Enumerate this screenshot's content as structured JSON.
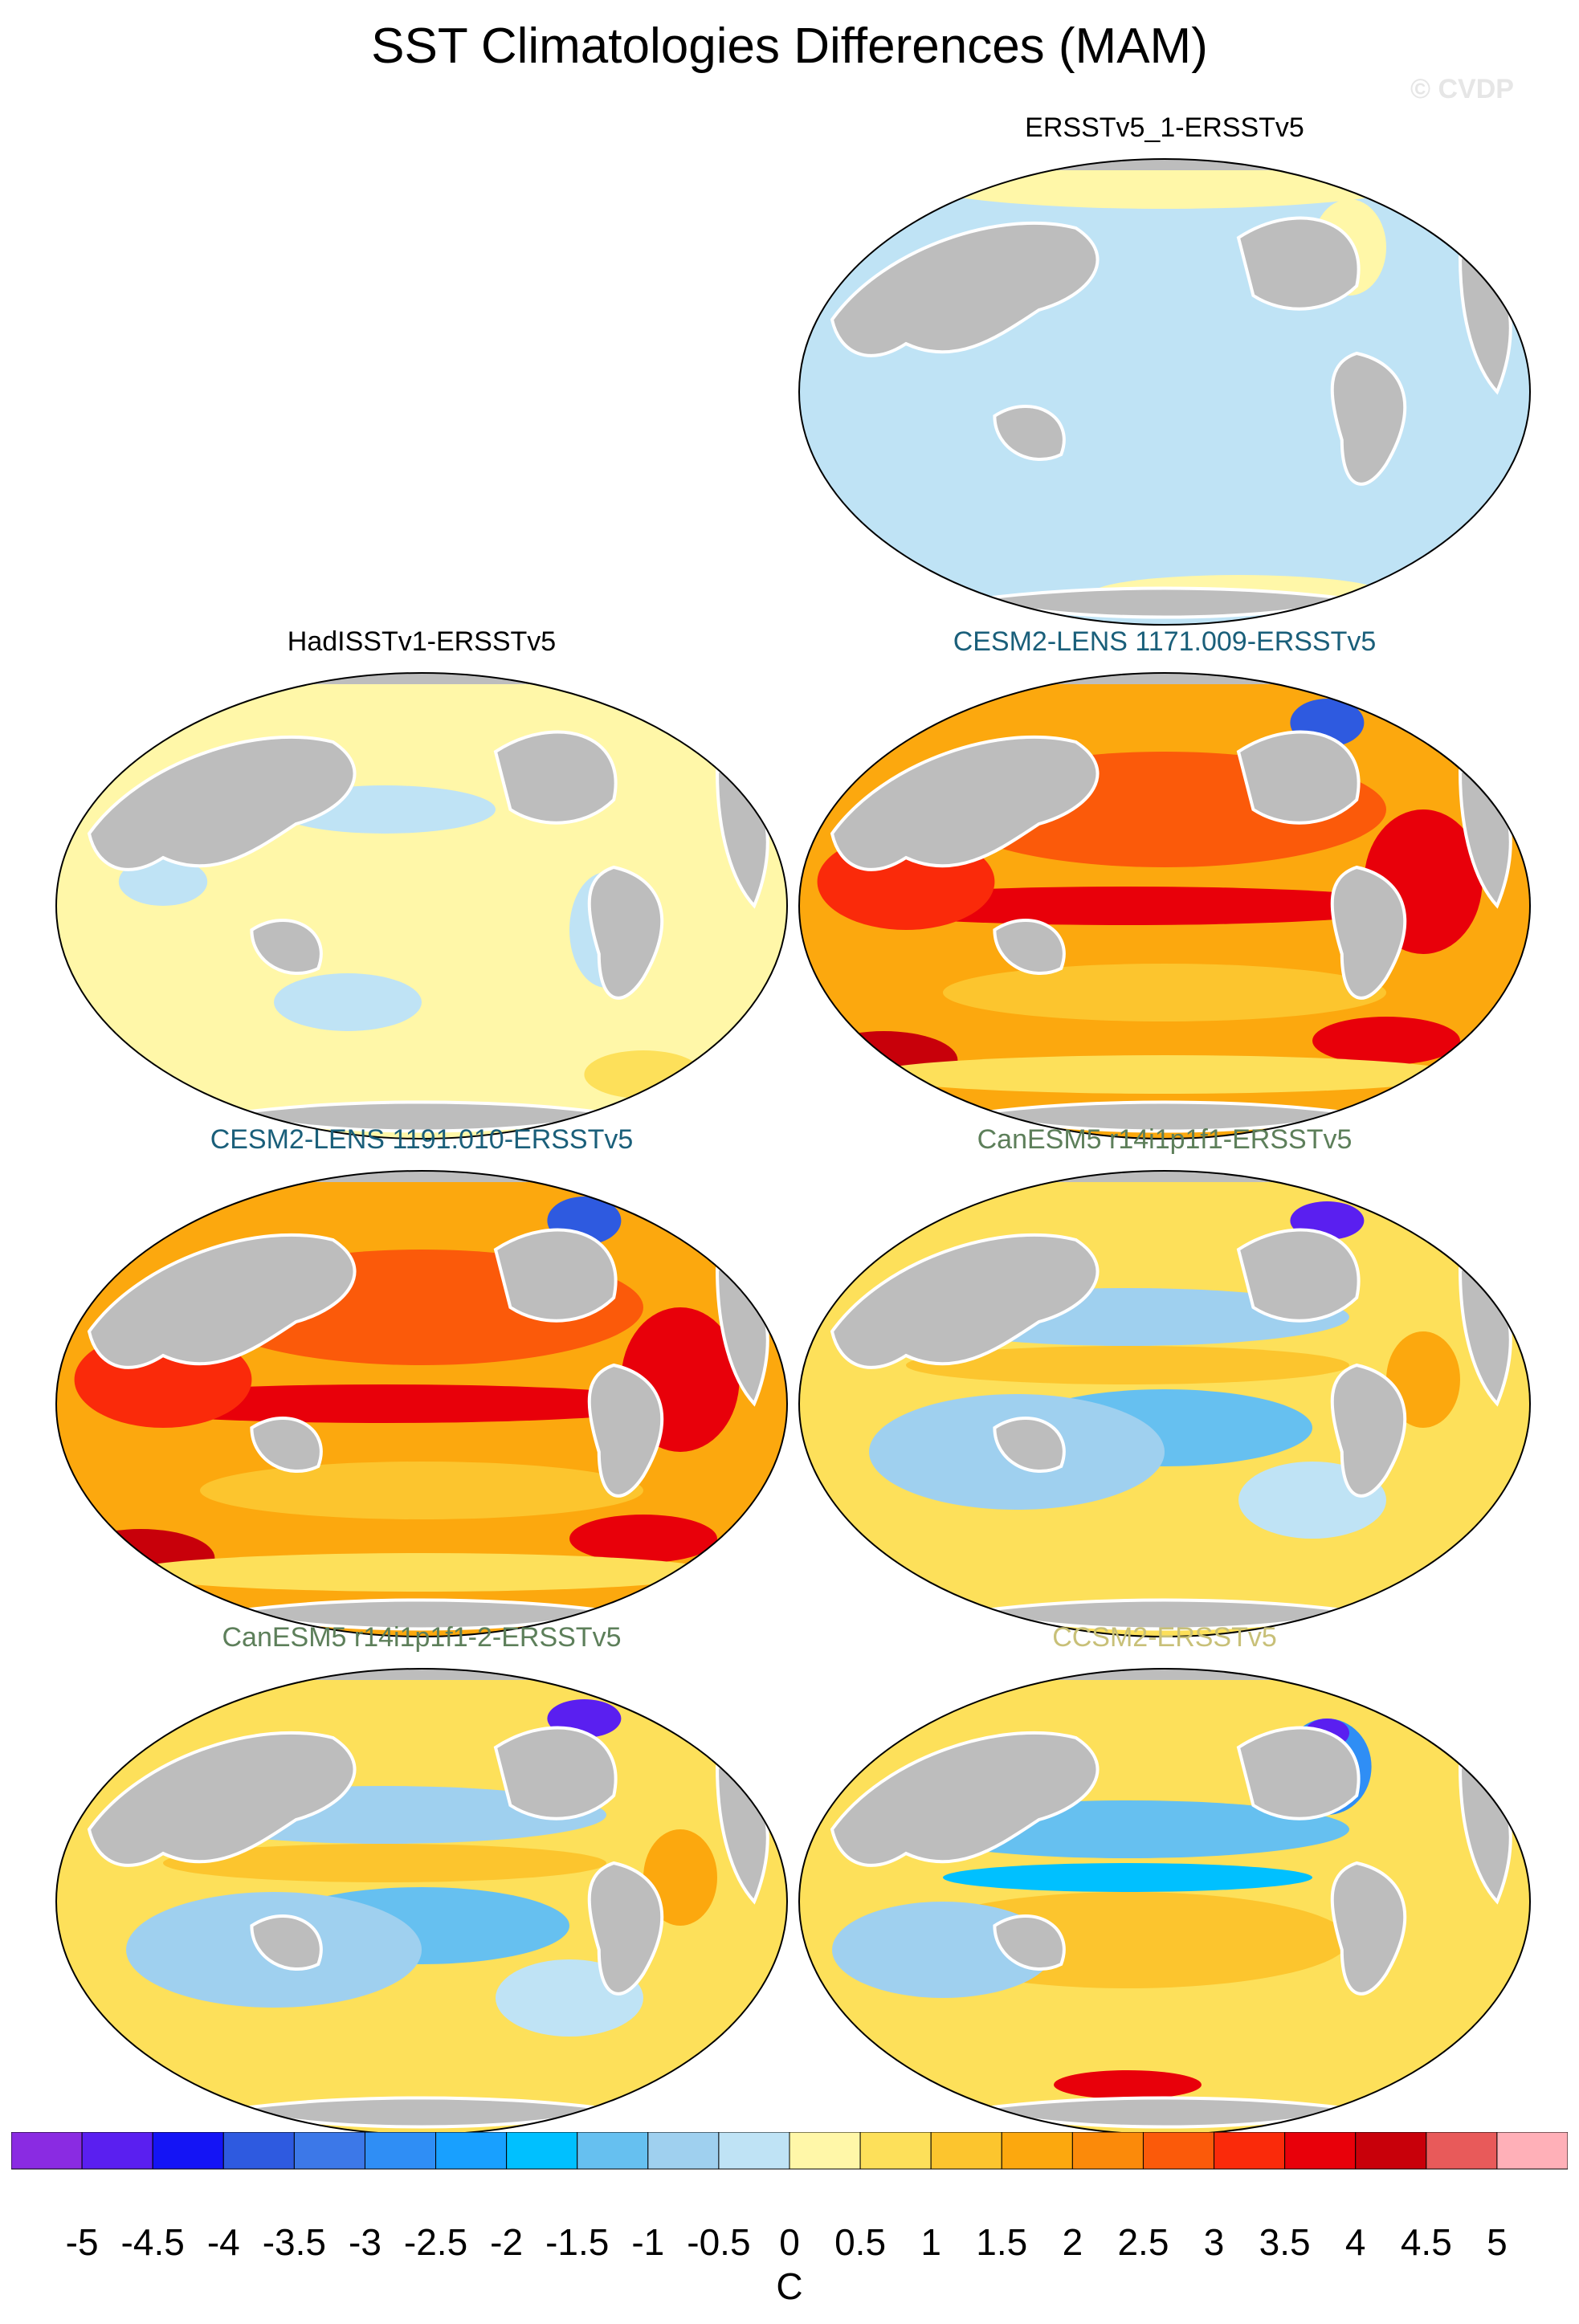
{
  "figure": {
    "title": "SST Climatologies Differences (MAM)",
    "watermark": "© CVDP"
  },
  "panels": [
    {
      "id": "p1",
      "title": "ERSSTv5_1-ERSSTv5",
      "title_color": "#000000",
      "pattern": "near-zero-negative"
    },
    {
      "id": "p2",
      "title": "HadISSTv1-ERSSTv5",
      "title_color": "#000000",
      "pattern": "near-zero-positive"
    },
    {
      "id": "p3",
      "title": "CESM2-LENS 1171.009-ERSSTv5",
      "title_color": "#1a5f7a",
      "pattern": "strong-warm"
    },
    {
      "id": "p4",
      "title": "CESM2-LENS 1191.010-ERSSTv5",
      "title_color": "#1a5f7a",
      "pattern": "strong-warm"
    },
    {
      "id": "p5",
      "title": "CanESM5 r14i1p1f1-ERSSTv5",
      "title_color": "#5d7f5a",
      "pattern": "mixed"
    },
    {
      "id": "p6",
      "title": "CanESM5 r14i1p1f1-2-ERSSTv5",
      "title_color": "#5d7f5a",
      "pattern": "mixed"
    },
    {
      "id": "p7",
      "title": "CCSM2-ERSSTv5",
      "title_color": "#c8c078",
      "pattern": "mixed-cool"
    }
  ],
  "colorbar": {
    "units": "C",
    "labels": [
      "-5",
      "-4.5",
      "-4",
      "-3.5",
      "-3",
      "-2.5",
      "-2",
      "-1.5",
      "-1",
      "-0.5",
      "0",
      "0.5",
      "1",
      "1.5",
      "2",
      "2.5",
      "3",
      "3.5",
      "4",
      "4.5",
      "5"
    ],
    "colors": [
      "#8a2be2",
      "#5a1ff0",
      "#1414f5",
      "#2e5ae0",
      "#3c78e8",
      "#2f8ef5",
      "#18a0ff",
      "#00c0ff",
      "#66c0f0",
      "#9fd0ef",
      "#bfe3f5",
      "#fff7a8",
      "#fde05a",
      "#fcc52e",
      "#fca80e",
      "#fb8a0a",
      "#fb5a0a",
      "#fa2a0a",
      "#e8000a",
      "#c8000a",
      "#e85a5a",
      "#ffb0b8"
    ]
  },
  "map_colors": {
    "land": "#bdbdbd",
    "land_edge": "#6f6f6f",
    "coast": "#ffffff"
  }
}
